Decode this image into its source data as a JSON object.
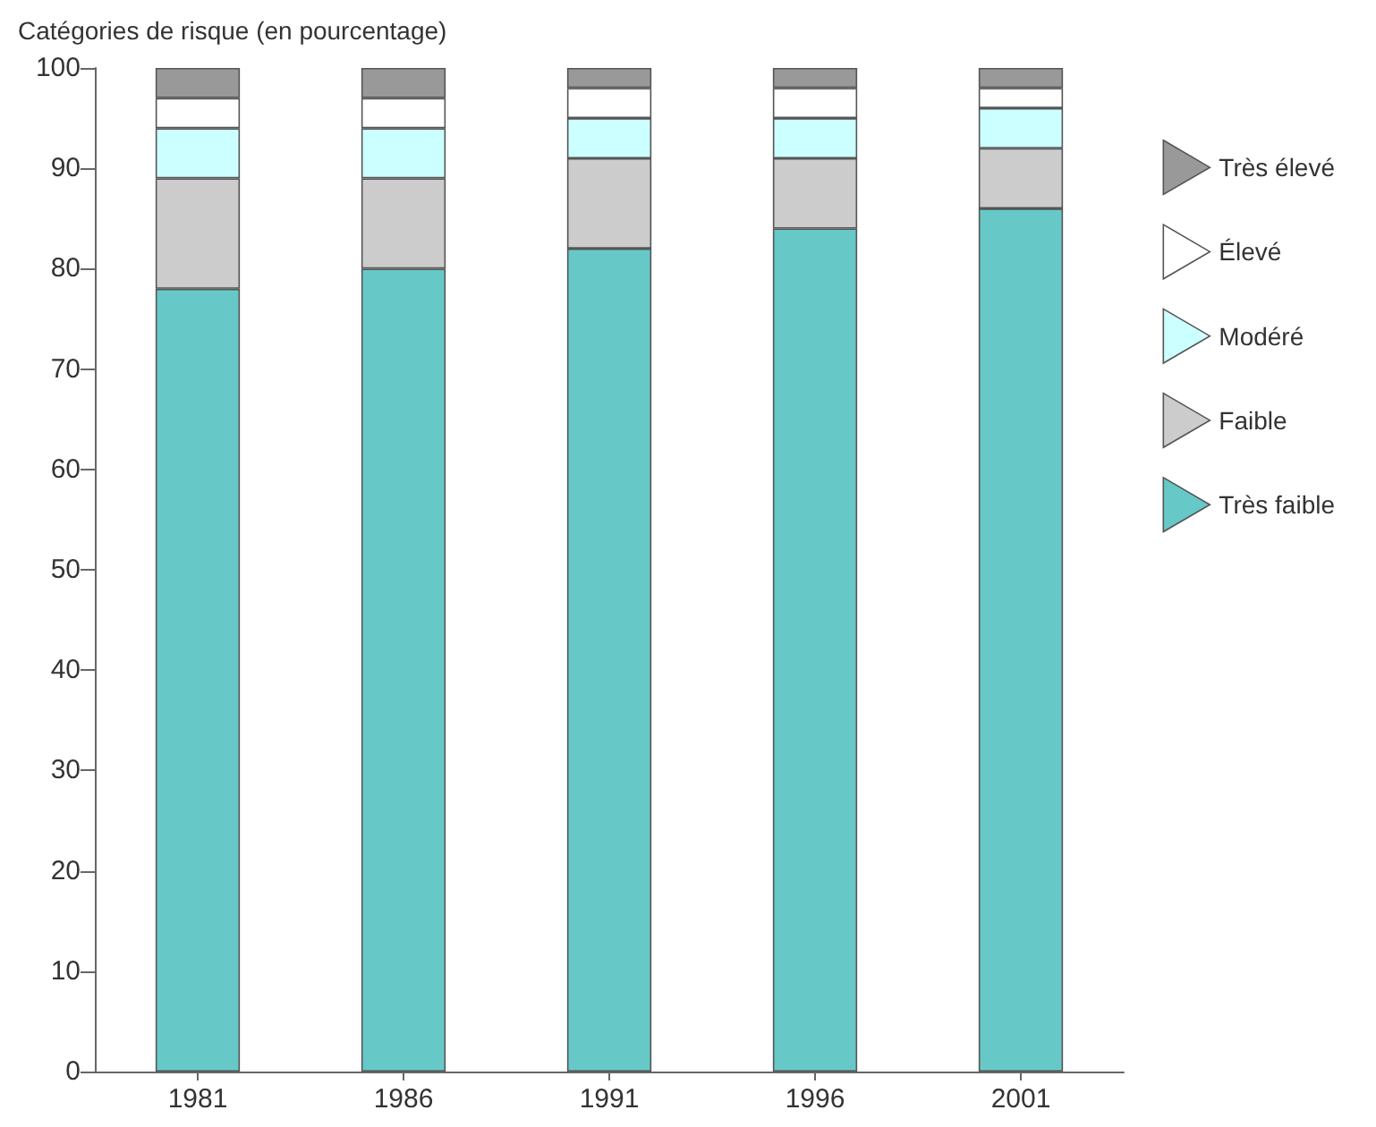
{
  "chart_data": {
    "type": "bar",
    "stacked": true,
    "ylabel": "Catégories de risque (en pourcentage)",
    "categories": [
      "1981",
      "1986",
      "1991",
      "1996",
      "2001"
    ],
    "series": [
      {
        "name": "Très faible",
        "color": "#66c9c7",
        "values": [
          78,
          80,
          82,
          84,
          86
        ]
      },
      {
        "name": "Faible",
        "color": "#cccccc",
        "values": [
          11,
          9,
          9,
          7,
          6
        ]
      },
      {
        "name": "Modéré",
        "color": "#ccffff",
        "values": [
          5,
          5,
          4,
          4,
          4
        ]
      },
      {
        "name": "Élevé",
        "color": "#ffffff",
        "values": [
          3,
          3,
          3,
          3,
          2
        ]
      },
      {
        "name": "Très élevé",
        "color": "#999999",
        "values": [
          3,
          3,
          2,
          2,
          2
        ]
      }
    ],
    "ylim": [
      0,
      100
    ],
    "yticks": [
      0,
      10,
      20,
      30,
      40,
      50,
      60,
      70,
      80,
      90,
      100
    ],
    "grid": false,
    "legend": "right"
  }
}
